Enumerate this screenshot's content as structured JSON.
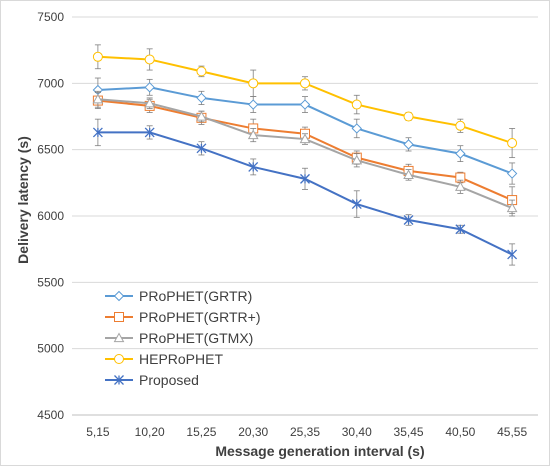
{
  "chart_data": {
    "type": "line",
    "title": "",
    "xlabel": "Message generation interval (s)",
    "ylabel": "Delivery latency (s)",
    "categories": [
      "5,15",
      "10,20",
      "15,25",
      "20,30",
      "25,35",
      "30,40",
      "35,45",
      "40,50",
      "45,55"
    ],
    "ylim": [
      4500,
      7500
    ],
    "yticks": [
      "4500",
      "5000",
      "5500",
      "6000",
      "6500",
      "7000",
      "7500"
    ],
    "grid": "horizontal",
    "legend_position": "lower-left",
    "series": [
      {
        "name": "PRoPHET(GRTR)",
        "color": "#5b9bd5",
        "marker": "diamond",
        "values": [
          6950,
          6970,
          6890,
          6840,
          6840,
          6660,
          6540,
          6470,
          6320
        ],
        "errors": [
          90,
          60,
          50,
          60,
          60,
          70,
          50,
          60,
          80
        ]
      },
      {
        "name": "PRoPHET(GRTR+)",
        "color": "#ed7d31",
        "marker": "square",
        "values": [
          6870,
          6830,
          6740,
          6660,
          6620,
          6440,
          6340,
          6290,
          6120
        ],
        "errors": [
          60,
          50,
          50,
          70,
          50,
          50,
          50,
          40,
          100
        ]
      },
      {
        "name": "PRoPHET(GTMX)",
        "color": "#a5a5a5",
        "marker": "triangle",
        "values": [
          6880,
          6850,
          6750,
          6610,
          6580,
          6420,
          6310,
          6220,
          6060
        ],
        "errors": [
          60,
          40,
          40,
          50,
          40,
          50,
          40,
          50,
          60
        ]
      },
      {
        "name": "HEPRoPHET",
        "color": "#ffc000",
        "marker": "circle",
        "values": [
          7200,
          7180,
          7090,
          7000,
          7000,
          6840,
          6750,
          6680,
          6550
        ],
        "errors": [
          90,
          80,
          40,
          100,
          50,
          70,
          30,
          50,
          110
        ]
      },
      {
        "name": "Proposed",
        "color": "#4472c4",
        "marker": "star",
        "values": [
          6630,
          6630,
          6510,
          6370,
          6280,
          6090,
          5970,
          5900,
          5710
        ],
        "errors": [
          100,
          50,
          50,
          60,
          80,
          100,
          40,
          30,
          80
        ]
      }
    ]
  }
}
